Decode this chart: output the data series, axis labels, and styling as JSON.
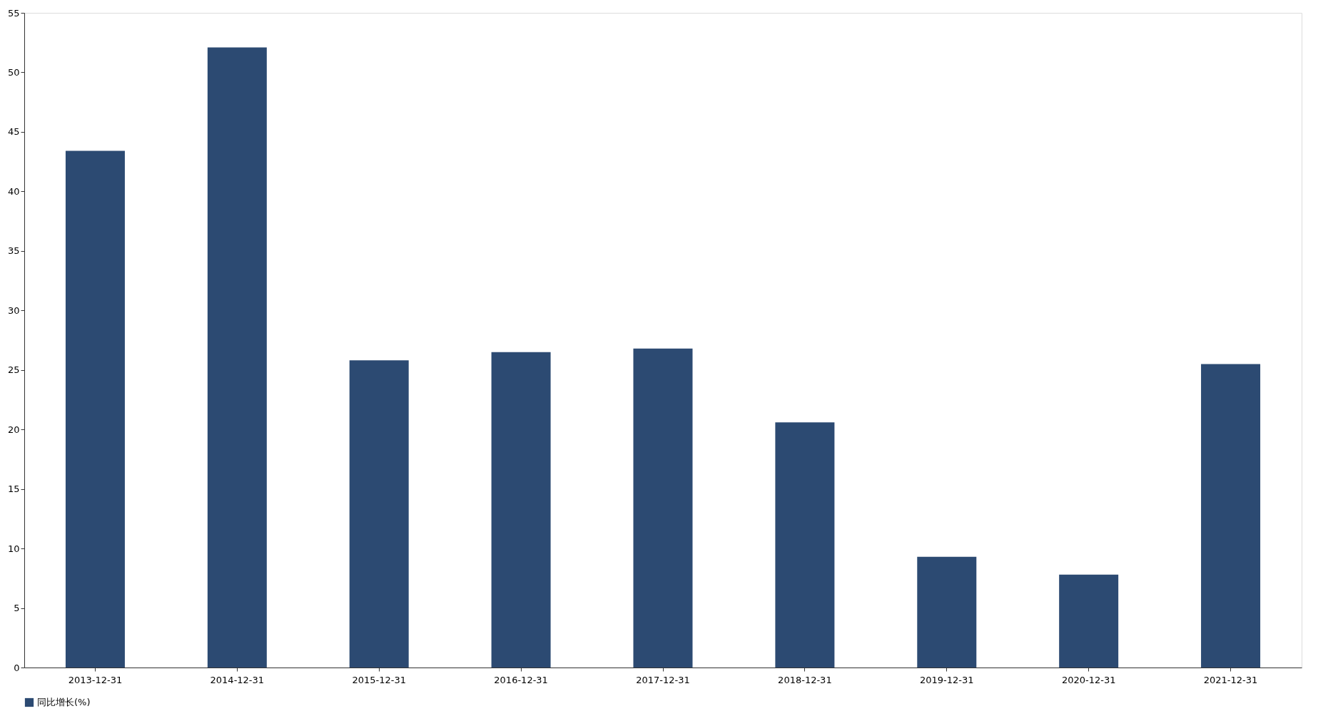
{
  "chart_data": {
    "type": "bar",
    "categories": [
      "2013-12-31",
      "2014-12-31",
      "2015-12-31",
      "2016-12-31",
      "2017-12-31",
      "2018-12-31",
      "2019-12-31",
      "2020-12-31",
      "2021-12-31"
    ],
    "series": [
      {
        "name": "同比增长(%)",
        "color": "#2c4a72",
        "values": [
          43.4,
          52.1,
          25.8,
          26.5,
          26.8,
          20.6,
          9.3,
          7.8,
          25.5
        ]
      }
    ],
    "ylim": [
      0,
      55
    ],
    "yticks": [
      0,
      5,
      10,
      15,
      20,
      25,
      30,
      35,
      40,
      45,
      50,
      55
    ],
    "grid": false,
    "legend": "bottom"
  }
}
